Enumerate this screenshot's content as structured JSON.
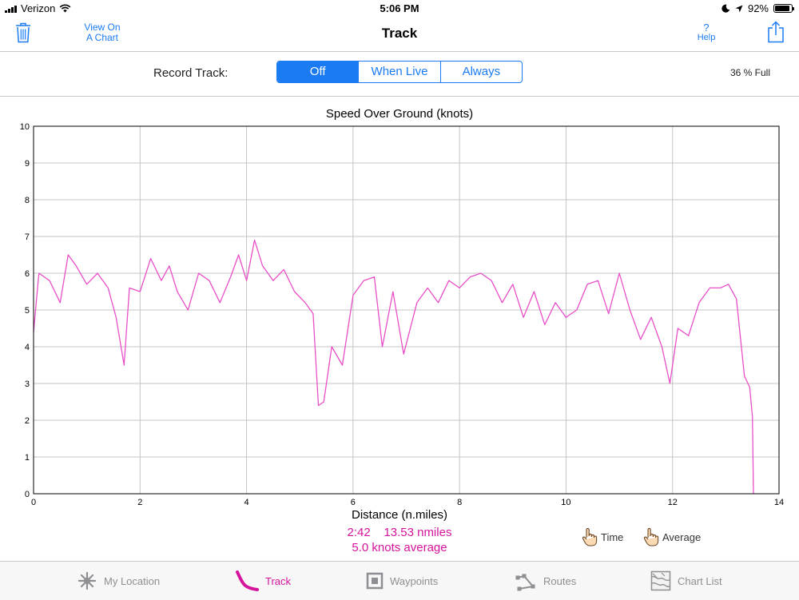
{
  "status_bar": {
    "carrier": "Verizon",
    "time": "5:06 PM",
    "battery": "92%",
    "battery_level": 0.92
  },
  "nav": {
    "view_chart_line1": "View On",
    "view_chart_line2": "A Chart",
    "title": "Track",
    "help_glyph": "?",
    "help_label": "Help"
  },
  "record": {
    "label": "Record Track:",
    "options": [
      "Off",
      "When Live",
      "Always"
    ],
    "selected": "Off",
    "storage": "36 % Full"
  },
  "chart_data": {
    "type": "line",
    "title": "Speed Over Ground (knots)",
    "xlabel": "Distance (n.miles)",
    "ylabel": "",
    "xlim": [
      0,
      14
    ],
    "ylim": [
      0,
      10
    ],
    "x_ticks": [
      "0",
      "2",
      "4",
      "6",
      "8",
      "10",
      "12",
      "14"
    ],
    "y_ticks": [
      "0",
      "1",
      "2",
      "3",
      "4",
      "5",
      "6",
      "7",
      "8",
      "9",
      "10"
    ],
    "grid": true,
    "color": "#e84fc9",
    "series": [
      {
        "x": [
          0,
          0.1,
          0.3,
          0.5,
          0.65,
          0.8,
          1.0,
          1.2,
          1.4,
          1.55,
          1.7,
          1.8,
          2.0,
          2.2,
          2.4,
          2.55,
          2.7,
          2.9,
          3.1,
          3.3,
          3.5,
          3.7,
          3.85,
          4.0,
          4.15,
          4.3,
          4.5,
          4.7,
          4.9,
          5.1,
          5.25,
          5.35,
          5.45,
          5.6,
          5.8,
          6.0,
          6.2,
          6.4,
          6.55,
          6.75,
          6.95,
          7.2,
          7.4,
          7.6,
          7.8,
          8.0,
          8.2,
          8.4,
          8.6,
          8.8,
          9.0,
          9.2,
          9.4,
          9.6,
          9.8,
          10.0,
          10.2,
          10.4,
          10.6,
          10.8,
          11.0,
          11.2,
          11.4,
          11.6,
          11.8,
          11.95,
          12.1,
          12.3,
          12.5,
          12.7,
          12.9,
          13.05,
          13.2,
          13.35,
          13.45,
          13.5,
          13.52
        ],
        "y": [
          4.4,
          6.0,
          5.8,
          5.2,
          6.5,
          6.2,
          5.7,
          6.0,
          5.6,
          4.8,
          3.5,
          5.6,
          5.5,
          6.4,
          5.8,
          6.2,
          5.5,
          5.0,
          6.0,
          5.8,
          5.2,
          5.9,
          6.5,
          5.8,
          6.9,
          6.2,
          5.8,
          6.1,
          5.5,
          5.2,
          4.9,
          2.4,
          2.5,
          4.0,
          3.5,
          5.4,
          5.8,
          5.9,
          4.0,
          5.5,
          3.8,
          5.2,
          5.6,
          5.2,
          5.8,
          5.6,
          5.9,
          6.0,
          5.8,
          5.2,
          5.7,
          4.8,
          5.5,
          4.6,
          5.2,
          4.8,
          5.0,
          5.7,
          5.8,
          4.9,
          6.0,
          5.0,
          4.2,
          4.8,
          4.0,
          3.0,
          4.5,
          4.3,
          5.2,
          5.6,
          5.6,
          5.7,
          5.3,
          3.2,
          2.9,
          2.1,
          0.0
        ]
      }
    ]
  },
  "summary": {
    "line1": "2:42    13.53 nmiles",
    "line2": "5.0 knots average"
  },
  "options": {
    "time": "Time",
    "average": "Average"
  },
  "tabs": [
    {
      "label": "My Location",
      "icon": "my-location-icon"
    },
    {
      "label": "Track",
      "icon": "track-icon",
      "active": true
    },
    {
      "label": "Waypoints",
      "icon": "waypoints-icon"
    },
    {
      "label": "Routes",
      "icon": "routes-icon"
    },
    {
      "label": "Chart List",
      "icon": "chart-list-icon"
    }
  ]
}
